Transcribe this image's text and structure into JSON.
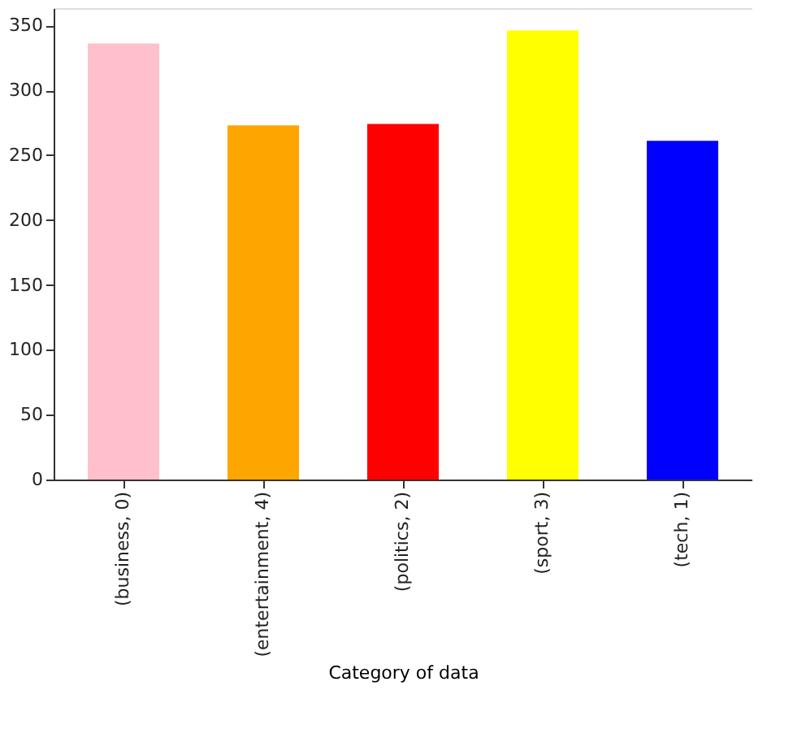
{
  "chart_data": {
    "type": "bar",
    "xlabel": "Category of data",
    "categories": [
      "(business, 0)",
      "(entertainment, 4)",
      "(politics, 2)",
      "(sport, 3)",
      "(tech, 1)"
    ],
    "values": [
      336,
      273,
      274,
      346,
      261
    ],
    "colors": [
      "#ffc0cb",
      "#ffa500",
      "#ff0000",
      "#ffff00",
      "#0000ff"
    ],
    "ylim": [
      0,
      363.3
    ],
    "yticks": [
      0,
      50,
      100,
      150,
      200,
      250,
      300,
      350
    ],
    "grid": false
  }
}
